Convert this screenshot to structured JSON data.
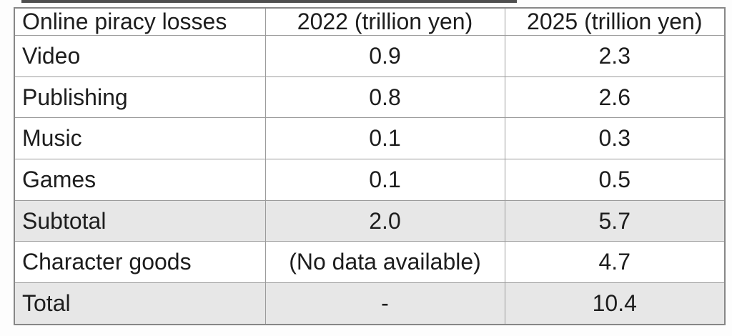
{
  "page": {
    "background": "#ffffff"
  },
  "colors": {
    "table_border": "#8f8f8f",
    "shaded_row_background": "#e7e7e7",
    "cell_background": "#ffffff",
    "text": "#1d1d1d",
    "top_artifact_strip": "#4f4f4f"
  },
  "table": {
    "header": {
      "category": "Online piracy losses",
      "y2022": "2022 (trillion yen)",
      "y2025": "2025 (trillion yen)"
    },
    "rows": [
      {
        "label": "Video",
        "y2022": "0.9",
        "y2025": "2.3",
        "shaded": false
      },
      {
        "label": "Publishing",
        "y2022": "0.8",
        "y2025": "2.6",
        "shaded": false
      },
      {
        "label": "Music",
        "y2022": "0.1",
        "y2025": "0.3",
        "shaded": false
      },
      {
        "label": "Games",
        "y2022": "0.1",
        "y2025": "0.5",
        "shaded": false
      },
      {
        "label": "Subtotal",
        "y2022": "2.0",
        "y2025": "5.7",
        "shaded": true
      },
      {
        "label": "Character goods",
        "y2022": "(No data available)",
        "y2025": "4.7",
        "shaded": false
      },
      {
        "label": "Total",
        "y2022": "-",
        "y2025": "10.4",
        "shaded": true
      }
    ]
  },
  "chart_data": {
    "type": "table",
    "title": "Online piracy losses",
    "unit": "trillion yen",
    "categories": [
      "Video",
      "Publishing",
      "Music",
      "Games",
      "Subtotal",
      "Character goods",
      "Total"
    ],
    "series": [
      {
        "name": "2022 (trillion yen)",
        "values": [
          0.9,
          0.8,
          0.1,
          0.1,
          2.0,
          null,
          null
        ]
      },
      {
        "name": "2025 (trillion yen)",
        "values": [
          2.3,
          2.6,
          0.3,
          0.5,
          5.7,
          4.7,
          10.4
        ]
      }
    ],
    "cell_text_overrides": {
      "character_goods_2022": "(No data available)",
      "total_2022": "-"
    },
    "layout_hints": {
      "shaded_rows": [
        "Subtotal",
        "Total"
      ],
      "first_column_align": "left",
      "value_columns_align": "center",
      "grid": true
    }
  }
}
